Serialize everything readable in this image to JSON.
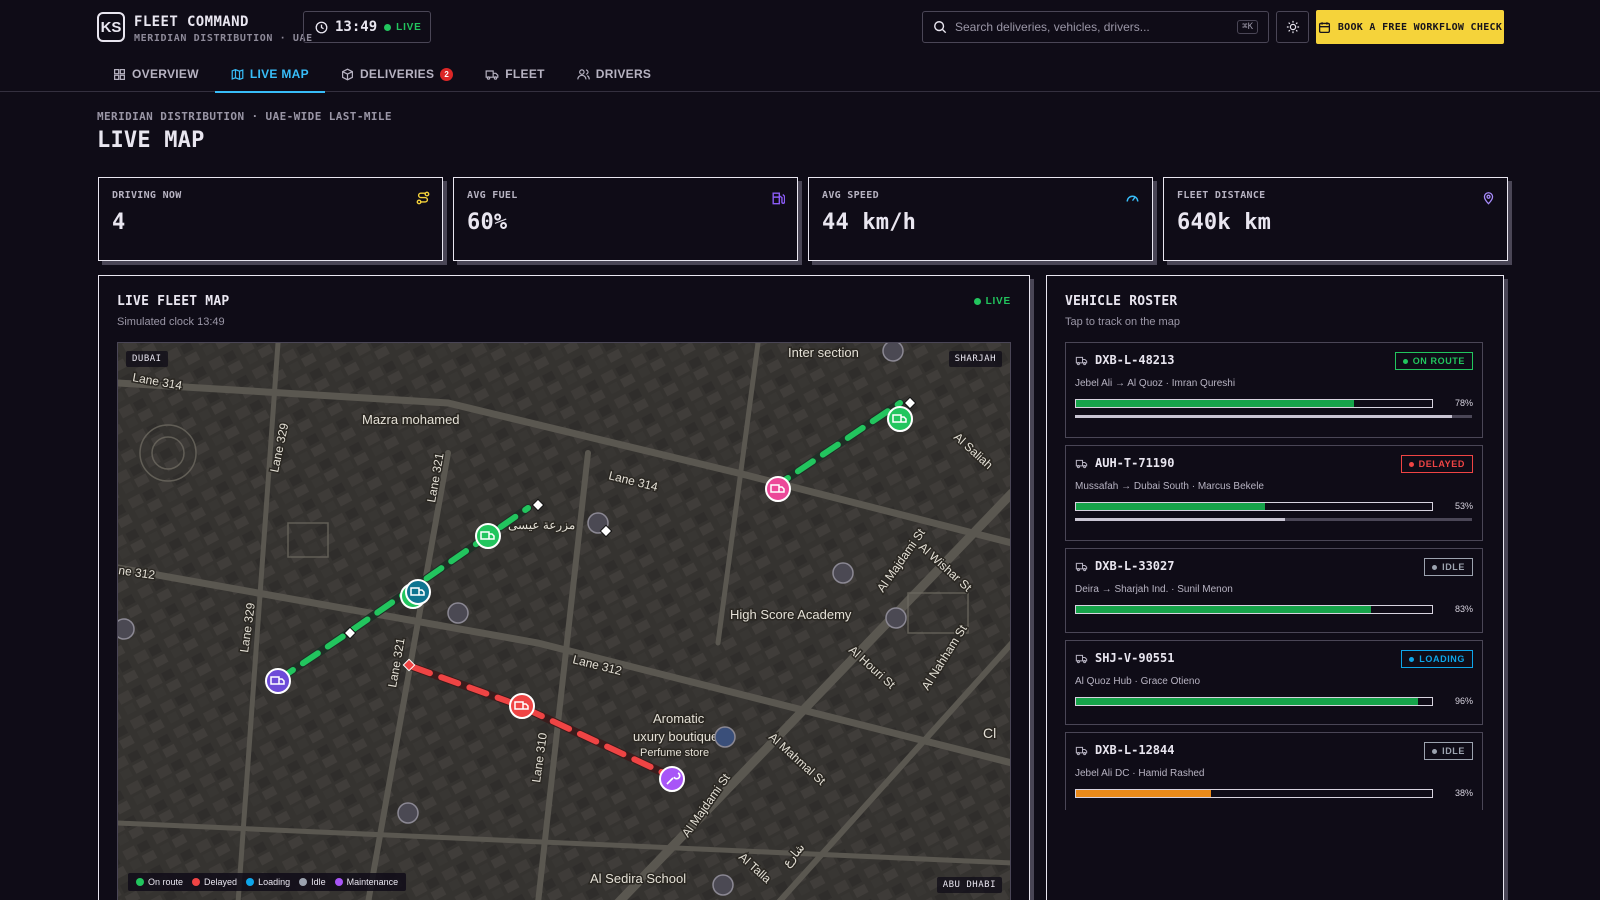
{
  "header": {
    "logo": "KS",
    "title": "FLEET COMMAND",
    "subtitle": "MERIDIAN DISTRIBUTION · UAE",
    "clock_time": "13:49",
    "clock_live": "LIVE",
    "search_placeholder": "Search deliveries, vehicles, drivers...",
    "search_shortcut": "⌘K",
    "cta_label": "BOOK A FREE WORKFLOW CHECK"
  },
  "tabs": [
    {
      "label": "OVERVIEW",
      "icon": "grid-icon"
    },
    {
      "label": "LIVE MAP",
      "icon": "map-icon",
      "active": true
    },
    {
      "label": "DELIVERIES",
      "icon": "package-icon",
      "badge": "2"
    },
    {
      "label": "FLEET",
      "icon": "truck-icon"
    },
    {
      "label": "DRIVERS",
      "icon": "users-icon"
    }
  ],
  "page": {
    "breadcrumb": "MERIDIAN DISTRIBUTION · UAE-WIDE LAST-MILE",
    "title": "LIVE MAP"
  },
  "stats": [
    {
      "label": "DRIVING NOW",
      "value": "4",
      "icon": "route-icon",
      "color": "#f5d33a"
    },
    {
      "label": "AVG FUEL",
      "value": "60%",
      "icon": "fuel-icon",
      "color": "#8b5cf6"
    },
    {
      "label": "AVG SPEED",
      "value": "44 km/h",
      "icon": "gauge-icon",
      "color": "#38bdf8"
    },
    {
      "label": "FLEET DISTANCE",
      "value": "640k km",
      "icon": "pin-icon",
      "color": "#a78bfa"
    }
  ],
  "map_panel": {
    "title": "LIVE FLEET MAP",
    "subtitle": "Simulated clock 13:49",
    "live": "LIVE",
    "corner_tl": "DUBAI",
    "corner_tr": "SHARJAH",
    "corner_br": "ABU DHABI",
    "place_labels": {
      "inter_section": "Inter section",
      "mazra": "Mazra mohamed",
      "lane314_a": "Lane 314",
      "lane314_b": "Lane 314",
      "lane329_a": "Lane 329",
      "lane329_b": "Lane 329",
      "lane321_a": "Lane 321",
      "lane321_b": "Lane 321",
      "lane312_a": "ne 312",
      "lane312_b": "Lane 312",
      "lane310": "Lane 310",
      "arabic_farm": "مزرعة عيسى",
      "high_score": "High Score Academy",
      "aromatic": "Aromatic",
      "luxury": "uxury boutique",
      "perfume": "Perfume store",
      "al_sedira": "Al Sedira School",
      "al_majdami_a": "Al Majdami St",
      "al_majdami_b": "Al Majdami St",
      "al_wishar": "Al Wishar St",
      "al_nahham": "Al Nahham St",
      "al_houri": "Al Houri St",
      "al_mahmal": "Al Mahmal St",
      "al_saliah": "Al Saliah",
      "al_talla": "Al Talla",
      "arabic_street": "شارع",
      "cut_right": "Cl"
    },
    "legend": [
      {
        "label": "On route",
        "color": "#22c55e"
      },
      {
        "label": "Delayed",
        "color": "#ef4444"
      },
      {
        "label": "Loading",
        "color": "#0ea5e9"
      },
      {
        "label": "Idle",
        "color": "#9ca3af"
      },
      {
        "label": "Maintenance",
        "color": "#a855f7"
      }
    ]
  },
  "roster": {
    "title": "VEHICLE ROSTER",
    "subtitle": "Tap to track on the map",
    "vehicles": [
      {
        "id": "DXB-L-48213",
        "route": "Jebel Ali → Al Quoz · Imran Qureshi",
        "status": "ON ROUTE",
        "status_color": "#22c55e",
        "fuel": 78,
        "fuel_label": "78%",
        "fuel_color": "#16a34a",
        "progress": 95
      },
      {
        "id": "AUH-T-71190",
        "route": "Mussafah → Dubai South · Marcus Bekele",
        "status": "DELAYED",
        "status_color": "#ef4444",
        "fuel": 53,
        "fuel_label": "53%",
        "fuel_color": "#16a34a",
        "progress": 53
      },
      {
        "id": "DXB-L-33027",
        "route": "Deira → Sharjah Ind. · Sunil Menon",
        "status": "IDLE",
        "status_color": "#9ca3af",
        "fuel": 83,
        "fuel_label": "83%",
        "fuel_color": "#16a34a",
        "progress": null
      },
      {
        "id": "SHJ-V-90551",
        "route": "Al Quoz Hub · Grace Otieno",
        "status": "LOADING",
        "status_color": "#0ea5e9",
        "fuel": 96,
        "fuel_label": "96%",
        "fuel_color": "#16a34a",
        "progress": null
      },
      {
        "id": "DXB-L-12844",
        "route": "Jebel Ali DC · Hamid Rashed",
        "status": "IDLE",
        "status_color": "#9ca3af",
        "fuel": 38,
        "fuel_label": "38%",
        "fuel_color": "#ea8a1a",
        "progress": null
      }
    ]
  }
}
